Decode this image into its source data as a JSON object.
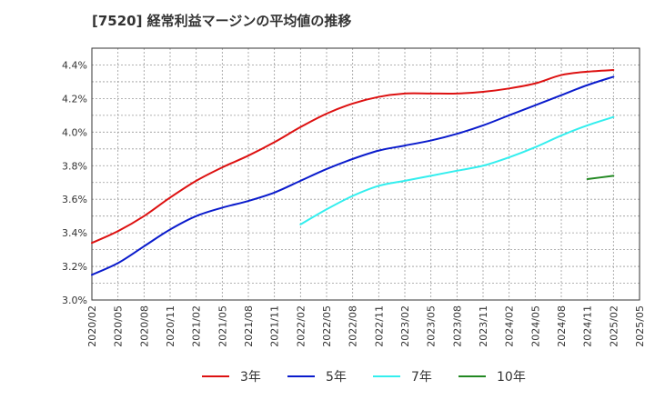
{
  "chart_data": {
    "type": "line",
    "title": "[7520]  経常利益マージンの平均値の推移",
    "xlabel": "",
    "ylabel": "",
    "ylim": [
      3.0,
      4.5
    ],
    "y_ticks": [
      "3.0%",
      "3.2%",
      "3.4%",
      "3.6%",
      "3.8%",
      "4.0%",
      "4.2%",
      "4.4%"
    ],
    "x_ticks": [
      "2020/02",
      "2020/05",
      "2020/08",
      "2020/11",
      "2021/02",
      "2021/05",
      "2021/08",
      "2021/11",
      "2022/02",
      "2022/05",
      "2022/08",
      "2022/11",
      "2023/02",
      "2023/05",
      "2023/08",
      "2023/11",
      "2024/02",
      "2024/05",
      "2024/08",
      "2024/11",
      "2025/02",
      "2025/05"
    ],
    "grid": true,
    "legend_position": "bottom",
    "series": [
      {
        "name": "3年",
        "color": "#dd1111",
        "points": [
          [
            "2020/02",
            3.34
          ],
          [
            "2020/05",
            3.41
          ],
          [
            "2020/08",
            3.5
          ],
          [
            "2020/11",
            3.61
          ],
          [
            "2021/02",
            3.71
          ],
          [
            "2021/05",
            3.79
          ],
          [
            "2021/08",
            3.86
          ],
          [
            "2021/11",
            3.94
          ],
          [
            "2022/02",
            4.03
          ],
          [
            "2022/05",
            4.11
          ],
          [
            "2022/08",
            4.17
          ],
          [
            "2022/11",
            4.21
          ],
          [
            "2023/02",
            4.23
          ],
          [
            "2023/05",
            4.23
          ],
          [
            "2023/08",
            4.23
          ],
          [
            "2023/11",
            4.24
          ],
          [
            "2024/02",
            4.26
          ],
          [
            "2024/05",
            4.29
          ],
          [
            "2024/08",
            4.34
          ],
          [
            "2024/11",
            4.36
          ],
          [
            "2025/02",
            4.37
          ]
        ]
      },
      {
        "name": "5年",
        "color": "#0a1bcc",
        "points": [
          [
            "2020/02",
            3.15
          ],
          [
            "2020/05",
            3.22
          ],
          [
            "2020/08",
            3.32
          ],
          [
            "2020/11",
            3.42
          ],
          [
            "2021/02",
            3.5
          ],
          [
            "2021/05",
            3.55
          ],
          [
            "2021/08",
            3.59
          ],
          [
            "2021/11",
            3.64
          ],
          [
            "2022/02",
            3.71
          ],
          [
            "2022/05",
            3.78
          ],
          [
            "2022/08",
            3.84
          ],
          [
            "2022/11",
            3.89
          ],
          [
            "2023/02",
            3.92
          ],
          [
            "2023/05",
            3.95
          ],
          [
            "2023/08",
            3.99
          ],
          [
            "2023/11",
            4.04
          ],
          [
            "2024/02",
            4.1
          ],
          [
            "2024/05",
            4.16
          ],
          [
            "2024/08",
            4.22
          ],
          [
            "2024/11",
            4.28
          ],
          [
            "2025/02",
            4.33
          ]
        ]
      },
      {
        "name": "7年",
        "color": "#33eeee",
        "points": [
          [
            "2022/02",
            3.45
          ],
          [
            "2022/05",
            3.54
          ],
          [
            "2022/08",
            3.62
          ],
          [
            "2022/11",
            3.68
          ],
          [
            "2023/02",
            3.71
          ],
          [
            "2023/05",
            3.74
          ],
          [
            "2023/08",
            3.77
          ],
          [
            "2023/11",
            3.8
          ],
          [
            "2024/02",
            3.85
          ],
          [
            "2024/05",
            3.91
          ],
          [
            "2024/08",
            3.98
          ],
          [
            "2024/11",
            4.04
          ],
          [
            "2025/02",
            4.09
          ]
        ]
      },
      {
        "name": "10年",
        "color": "#228822",
        "points": [
          [
            "2024/11",
            3.72
          ],
          [
            "2025/02",
            3.74
          ]
        ]
      }
    ]
  }
}
